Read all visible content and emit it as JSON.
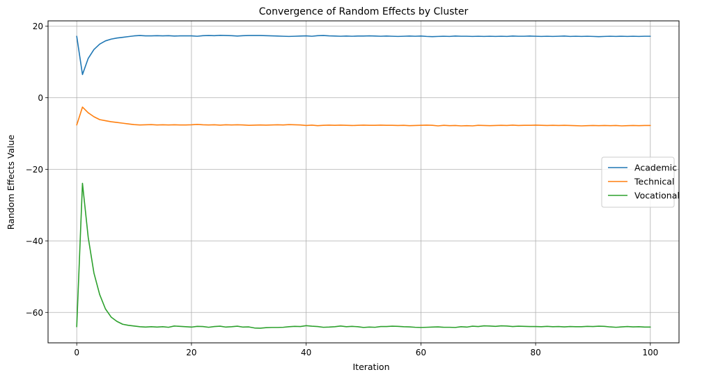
{
  "chart_data": {
    "type": "line",
    "title": "Convergence of Random Effects by Cluster",
    "xlabel": "Iteration",
    "ylabel": "Random Effects Value",
    "xlim": [
      -5,
      105
    ],
    "ylim": [
      -68.5,
      21.5
    ],
    "xticks": [
      0,
      20,
      40,
      60,
      80,
      100
    ],
    "yticks": [
      20,
      0,
      -20,
      -40,
      -60
    ],
    "ytick_labels": [
      "20",
      "0",
      "−20",
      "−40",
      "−60"
    ],
    "grid": true,
    "legend_position": "center-right",
    "x": [
      0,
      1,
      2,
      3,
      4,
      5,
      6,
      7,
      8,
      9,
      10,
      11,
      12,
      13,
      14,
      15,
      16,
      17,
      18,
      19,
      20,
      21,
      22,
      23,
      24,
      25,
      26,
      27,
      28,
      29,
      30,
      31,
      32,
      33,
      34,
      35,
      36,
      37,
      38,
      39,
      40,
      41,
      42,
      43,
      44,
      45,
      46,
      47,
      48,
      49,
      50,
      51,
      52,
      53,
      54,
      55,
      56,
      57,
      58,
      59,
      60,
      61,
      62,
      63,
      64,
      65,
      66,
      67,
      68,
      69,
      70,
      71,
      72,
      73,
      74,
      75,
      76,
      77,
      78,
      79,
      80,
      81,
      82,
      83,
      84,
      85,
      86,
      87,
      88,
      89,
      90,
      91,
      92,
      93,
      94,
      95,
      96,
      97,
      98,
      99,
      100
    ],
    "series": [
      {
        "name": "Academic",
        "color": "#1f77b4",
        "values": [
          17.2,
          6.5,
          11.0,
          13.5,
          15.0,
          15.9,
          16.4,
          16.7,
          16.9,
          17.1,
          17.3,
          17.4,
          17.3,
          17.3,
          17.35,
          17.3,
          17.35,
          17.25,
          17.3,
          17.3,
          17.3,
          17.2,
          17.35,
          17.4,
          17.35,
          17.45,
          17.4,
          17.35,
          17.25,
          17.35,
          17.4,
          17.4,
          17.4,
          17.35,
          17.3,
          17.25,
          17.2,
          17.15,
          17.2,
          17.25,
          17.3,
          17.2,
          17.35,
          17.4,
          17.3,
          17.25,
          17.2,
          17.25,
          17.2,
          17.25,
          17.25,
          17.3,
          17.25,
          17.2,
          17.25,
          17.2,
          17.15,
          17.2,
          17.25,
          17.2,
          17.25,
          17.15,
          17.1,
          17.15,
          17.2,
          17.15,
          17.25,
          17.2,
          17.2,
          17.15,
          17.2,
          17.15,
          17.2,
          17.15,
          17.2,
          17.15,
          17.25,
          17.2,
          17.2,
          17.25,
          17.2,
          17.15,
          17.2,
          17.15,
          17.2,
          17.25,
          17.15,
          17.2,
          17.15,
          17.2,
          17.15,
          17.1,
          17.15,
          17.2,
          17.15,
          17.2,
          17.15,
          17.2,
          17.15,
          17.2,
          17.2
        ]
      },
      {
        "name": "Technical",
        "color": "#ff7f0e",
        "values": [
          -7.6,
          -2.6,
          -4.2,
          -5.3,
          -6.1,
          -6.4,
          -6.7,
          -6.9,
          -7.1,
          -7.3,
          -7.5,
          -7.6,
          -7.55,
          -7.5,
          -7.6,
          -7.55,
          -7.6,
          -7.55,
          -7.6,
          -7.6,
          -7.55,
          -7.45,
          -7.55,
          -7.6,
          -7.55,
          -7.65,
          -7.55,
          -7.6,
          -7.55,
          -7.6,
          -7.7,
          -7.65,
          -7.6,
          -7.65,
          -7.6,
          -7.55,
          -7.6,
          -7.5,
          -7.55,
          -7.6,
          -7.75,
          -7.65,
          -7.8,
          -7.7,
          -7.65,
          -7.7,
          -7.65,
          -7.7,
          -7.75,
          -7.7,
          -7.65,
          -7.7,
          -7.7,
          -7.65,
          -7.7,
          -7.7,
          -7.75,
          -7.7,
          -7.8,
          -7.75,
          -7.7,
          -7.65,
          -7.7,
          -7.85,
          -7.7,
          -7.8,
          -7.75,
          -7.85,
          -7.8,
          -7.85,
          -7.7,
          -7.75,
          -7.8,
          -7.75,
          -7.7,
          -7.75,
          -7.65,
          -7.75,
          -7.7,
          -7.7,
          -7.65,
          -7.7,
          -7.75,
          -7.7,
          -7.75,
          -7.7,
          -7.75,
          -7.8,
          -7.85,
          -7.8,
          -7.75,
          -7.8,
          -7.75,
          -7.8,
          -7.75,
          -7.85,
          -7.8,
          -7.75,
          -7.8,
          -7.75,
          -7.75
        ]
      },
      {
        "name": "Vocational",
        "color": "#2ca02c",
        "values": [
          -64.0,
          -23.9,
          -39.0,
          -49.0,
          -55.0,
          -59.0,
          -61.3,
          -62.5,
          -63.3,
          -63.6,
          -63.8,
          -64.0,
          -64.1,
          -64.0,
          -64.1,
          -64.0,
          -64.15,
          -63.8,
          -63.9,
          -64.0,
          -64.1,
          -63.9,
          -63.95,
          -64.15,
          -63.95,
          -63.85,
          -64.1,
          -64.0,
          -63.85,
          -64.1,
          -64.05,
          -64.35,
          -64.4,
          -64.25,
          -64.2,
          -64.2,
          -64.15,
          -64.0,
          -63.9,
          -63.95,
          -63.7,
          -63.85,
          -63.95,
          -64.15,
          -64.1,
          -64.0,
          -63.8,
          -64.0,
          -63.9,
          -64.0,
          -64.2,
          -64.1,
          -64.15,
          -63.95,
          -63.95,
          -63.85,
          -63.9,
          -64.0,
          -64.05,
          -64.15,
          -64.2,
          -64.15,
          -64.1,
          -64.05,
          -64.15,
          -64.15,
          -64.2,
          -64.0,
          -64.1,
          -63.85,
          -63.95,
          -63.75,
          -63.8,
          -63.9,
          -63.75,
          -63.8,
          -63.95,
          -63.85,
          -63.9,
          -63.95,
          -63.95,
          -64.0,
          -63.9,
          -64.0,
          -63.95,
          -64.05,
          -63.95,
          -64.0,
          -64.0,
          -63.9,
          -63.95,
          -63.85,
          -63.9,
          -64.05,
          -64.15,
          -64.05,
          -63.95,
          -64.05,
          -64.0,
          -64.1,
          -64.1
        ]
      }
    ]
  }
}
